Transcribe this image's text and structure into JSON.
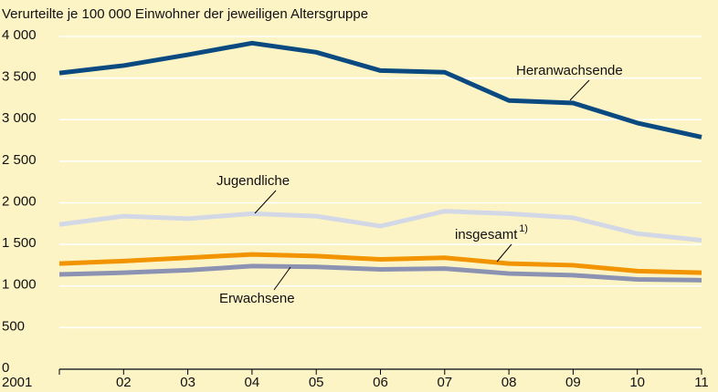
{
  "chart_data": {
    "type": "line",
    "title": "Verurteilte je 100 000 Einwohner der jeweiligen Altersgruppe",
    "categories": [
      "2001",
      "02",
      "03",
      "04",
      "05",
      "06",
      "07",
      "08",
      "09",
      "10",
      "11"
    ],
    "ylim": [
      0,
      4000
    ],
    "yticks": [
      0,
      500,
      {
        "value": 1000,
        "label": "1 000"
      },
      {
        "value": 1500,
        "label": "1 500"
      },
      {
        "value": 2000,
        "label": "2 000"
      },
      {
        "value": 2500,
        "label": "2 500"
      },
      {
        "value": 3000,
        "label": "3 000"
      },
      {
        "value": 3500,
        "label": "3 500"
      },
      {
        "value": 4000,
        "label": "4 000"
      }
    ],
    "grid": true,
    "footnote_marker": "1)",
    "series": [
      {
        "name": "Heranwachsende",
        "color": "#0b4a80",
        "values": [
          3560,
          3650,
          3780,
          3920,
          3810,
          3590,
          3570,
          3230,
          3200,
          2960,
          2790
        ]
      },
      {
        "name": "Jugendliche",
        "color": "#d3d8e6",
        "values": [
          1740,
          1840,
          1810,
          1870,
          1840,
          1720,
          1900,
          1870,
          1820,
          1630,
          1550
        ]
      },
      {
        "name": "insgesamt",
        "color": "#f29400",
        "values": [
          1270,
          1300,
          1340,
          1380,
          1360,
          1320,
          1340,
          1270,
          1250,
          1180,
          1160
        ]
      },
      {
        "name": "Erwachsene",
        "color": "#8c93b2",
        "values": [
          1140,
          1160,
          1190,
          1240,
          1230,
          1200,
          1210,
          1150,
          1130,
          1080,
          1070
        ]
      }
    ]
  }
}
